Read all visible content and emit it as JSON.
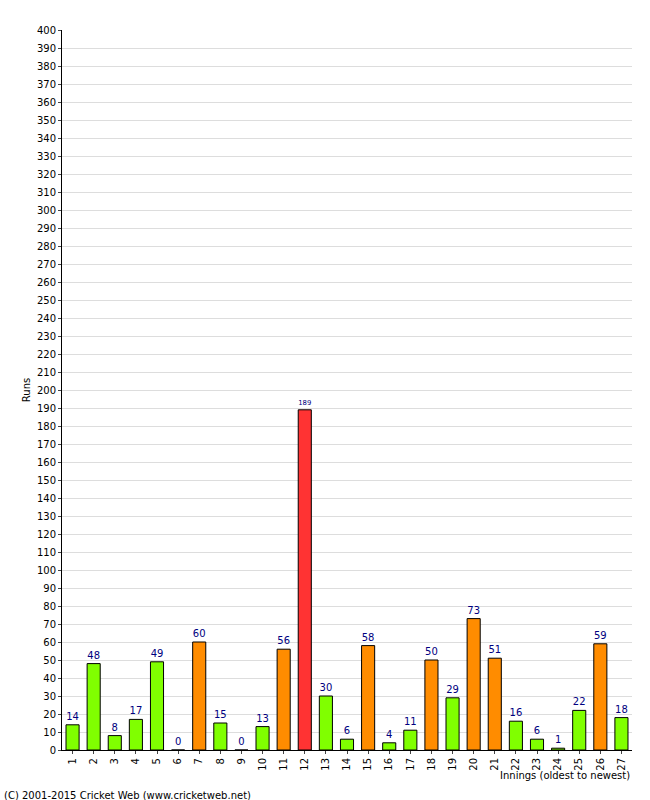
{
  "chart_data": {
    "type": "bar",
    "y_label": "Runs",
    "x_label": "Innings (oldest to newest)",
    "source": "(C) 2001-2015 Cricket Web (www.cricketweb.net)",
    "categories": [
      "1",
      "2",
      "3",
      "4",
      "5",
      "6",
      "7",
      "8",
      "9",
      "10",
      "11",
      "12",
      "13",
      "14",
      "15",
      "16",
      "17",
      "18",
      "19",
      "20",
      "21",
      "22",
      "23",
      "24",
      "25",
      "26",
      "27"
    ],
    "values": [
      14,
      48,
      8,
      17,
      49,
      0,
      60,
      15,
      0,
      13,
      56,
      189,
      30,
      6,
      58,
      4,
      11,
      50,
      29,
      73,
      51,
      16,
      6,
      1,
      22,
      59,
      18
    ],
    "colors": [
      "#80ff00",
      "#80ff00",
      "#80ff00",
      "#80ff00",
      "#80ff00",
      "#80ff00",
      "#ff8c00",
      "#80ff00",
      "#80ff00",
      "#80ff00",
      "#ff8c00",
      "#ff3333",
      "#80ff00",
      "#80ff00",
      "#ff8c00",
      "#80ff00",
      "#80ff00",
      "#ff8c00",
      "#80ff00",
      "#ff8c00",
      "#ff8c00",
      "#80ff00",
      "#80ff00",
      "#80ff00",
      "#80ff00",
      "#ff8c00",
      "#80ff00"
    ],
    "ylim": [
      0,
      400
    ],
    "yticks": [
      0,
      10,
      20,
      30,
      40,
      50,
      60,
      70,
      80,
      90,
      100,
      110,
      120,
      130,
      140,
      150,
      160,
      170,
      180,
      190,
      200,
      210,
      220,
      230,
      240,
      250,
      260,
      270,
      280,
      290,
      300,
      310,
      320,
      330,
      340,
      350,
      360,
      370,
      380,
      390,
      400
    ],
    "grid": true,
    "data_labels": true
  }
}
